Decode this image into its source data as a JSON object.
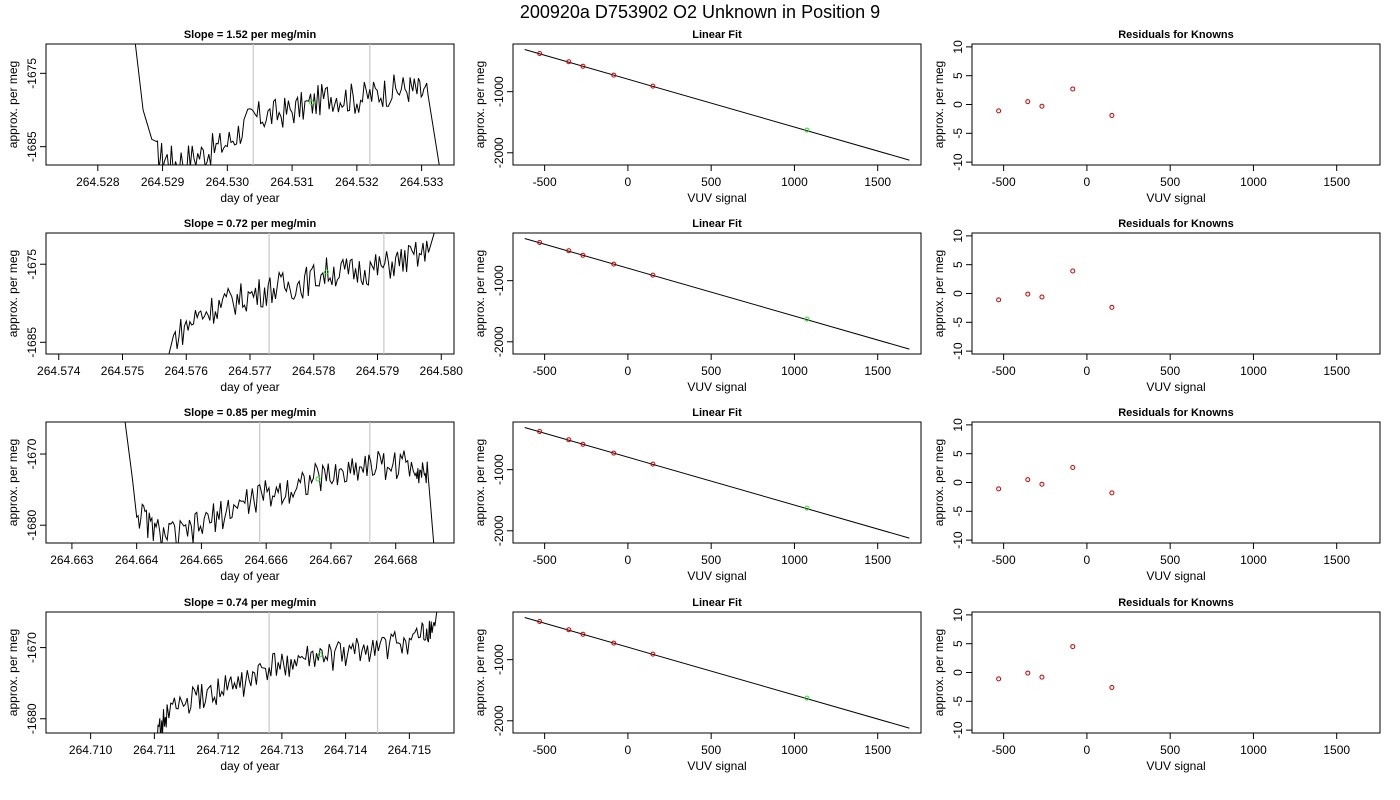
{
  "suptitle": "200920a      D753902   O2 Unknown in Position  9",
  "chart_data": [
    {
      "type": "line",
      "row": 0,
      "panel": "time-series",
      "title": "Slope =  1.52  per meg/min",
      "xlabel": "day of year",
      "ylabel": "approx. per meg",
      "xlim": [
        264.5272,
        264.5335
      ],
      "ylim": [
        -1687.5,
        -1671
      ],
      "xticks": [
        264.528,
        264.529,
        264.53,
        264.531,
        264.532,
        264.533
      ],
      "xtick_labels": [
        "264.528",
        "264.529",
        "264.530",
        "264.531",
        "264.532",
        "264.533"
      ],
      "yticks": [
        -1675,
        -1685
      ],
      "ytick_labels": [
        "-1675",
        "-1685"
      ],
      "vlines": [
        264.5304,
        264.5322
      ],
      "unknown_point": {
        "x": 264.5313,
        "y": -1679
      },
      "series": [
        {
          "x": [
            264.5285,
            264.5287,
            264.5289,
            264.5292,
            264.5296,
            264.53,
            264.5304,
            264.5308,
            264.5312,
            264.5316,
            264.532,
            264.5324,
            264.5328,
            264.5331,
            264.5333
          ],
          "y": [
            -1665,
            -1680,
            -1686,
            -1687,
            -1686,
            -1684.5,
            -1681,
            -1680.5,
            -1679.5,
            -1678,
            -1678.5,
            -1677.5,
            -1677,
            -1678,
            -1689
          ],
          "noise": 2.2
        }
      ]
    },
    {
      "type": "scatter",
      "row": 0,
      "panel": "linear-fit",
      "title": "Linear Fit",
      "xlabel": "VUV signal",
      "ylabel": "approx. per meg",
      "xlim": [
        -690,
        1760
      ],
      "ylim": [
        -2200,
        -220
      ],
      "xticks": [
        -500,
        0,
        500,
        1000,
        1500
      ],
      "xtick_labels": [
        "-500",
        "0",
        "500",
        "1000",
        "1500"
      ],
      "yticks": [
        -1000,
        -2000
      ],
      "ytick_labels": [
        "-1000",
        "-2000"
      ],
      "fit_line": {
        "x": [
          -620,
          1690
        ],
        "y": [
          -310,
          -2120
        ]
      },
      "knowns": {
        "x": [
          -530,
          -355,
          -270,
          -85,
          150
        ],
        "y": [
          -375,
          -510,
          -585,
          -730,
          -910
        ]
      },
      "unknown": {
        "x": 1075,
        "y": -1630
      }
    },
    {
      "type": "scatter",
      "row": 0,
      "panel": "residuals",
      "title": "Residuals for Knowns",
      "xlabel": "VUV signal",
      "ylabel": "approx. per meg",
      "xlim": [
        -690,
        1760
      ],
      "ylim": [
        -10.5,
        10.5
      ],
      "xticks": [
        -500,
        0,
        500,
        1000,
        1500
      ],
      "xtick_labels": [
        "-500",
        "0",
        "500",
        "1000",
        "1500"
      ],
      "yticks": [
        -10,
        -5,
        0,
        5,
        10
      ],
      "ytick_labels": [
        "-10",
        "-5",
        "0",
        "5",
        "10"
      ],
      "points": {
        "x": [
          -530,
          -355,
          -270,
          -85,
          150
        ],
        "y": [
          -1.1,
          0.5,
          -0.3,
          2.7,
          -1.9
        ]
      }
    },
    {
      "type": "line",
      "row": 1,
      "panel": "time-series",
      "title": "Slope =  0.72  per meg/min",
      "xlabel": "day of year",
      "ylabel": "approx. per meg",
      "xlim": [
        264.5738,
        264.5802
      ],
      "ylim": [
        -1686.5,
        -1671
      ],
      "xticks": [
        264.574,
        264.575,
        264.576,
        264.577,
        264.578,
        264.579,
        264.58
      ],
      "xtick_labels": [
        "264.574",
        "264.575",
        "264.576",
        "264.577",
        "264.578",
        "264.579",
        "264.580"
      ],
      "yticks": [
        -1675,
        -1685
      ],
      "ytick_labels": [
        "-1675",
        "-1685"
      ],
      "vlines": [
        264.5773,
        264.5791
      ],
      "unknown_point": {
        "x": 264.5782,
        "y": -1676
      },
      "series": [
        {
          "x": [
            264.5756,
            264.5758,
            264.5762,
            264.5766,
            264.577,
            264.5774,
            264.5778,
            264.5782,
            264.5786,
            264.579,
            264.5794,
            264.5798,
            264.58
          ],
          "y": [
            -1690,
            -1684.5,
            -1681.5,
            -1680,
            -1679,
            -1678,
            -1677.5,
            -1676,
            -1676,
            -1675.5,
            -1674.5,
            -1673.5,
            -1668
          ],
          "noise": 2.0
        }
      ]
    },
    {
      "type": "scatter",
      "row": 1,
      "panel": "linear-fit",
      "title": "Linear Fit",
      "xlabel": "VUV signal",
      "ylabel": "approx. per meg",
      "xlim": [
        -690,
        1760
      ],
      "ylim": [
        -2200,
        -220
      ],
      "xticks": [
        -500,
        0,
        500,
        1000,
        1500
      ],
      "xtick_labels": [
        "-500",
        "0",
        "500",
        "1000",
        "1500"
      ],
      "yticks": [
        -1000,
        -2000
      ],
      "ytick_labels": [
        "-1000",
        "-2000"
      ],
      "fit_line": {
        "x": [
          -620,
          1690
        ],
        "y": [
          -310,
          -2120
        ]
      },
      "knowns": {
        "x": [
          -530,
          -355,
          -270,
          -85,
          150
        ],
        "y": [
          -375,
          -510,
          -585,
          -730,
          -910
        ]
      },
      "unknown": {
        "x": 1075,
        "y": -1630
      }
    },
    {
      "type": "scatter",
      "row": 1,
      "panel": "residuals",
      "title": "Residuals for Knowns",
      "xlabel": "VUV signal",
      "ylabel": "approx. per meg",
      "xlim": [
        -690,
        1760
      ],
      "ylim": [
        -10.5,
        10.5
      ],
      "xticks": [
        -500,
        0,
        500,
        1000,
        1500
      ],
      "xtick_labels": [
        "-500",
        "0",
        "500",
        "1000",
        "1500"
      ],
      "yticks": [
        -10,
        -5,
        0,
        5,
        10
      ],
      "ytick_labels": [
        "-10",
        "-5",
        "0",
        "5",
        "10"
      ],
      "points": {
        "x": [
          -530,
          -355,
          -270,
          -85,
          150
        ],
        "y": [
          -1.1,
          -0.1,
          -0.6,
          3.9,
          -2.4
        ]
      }
    },
    {
      "type": "line",
      "row": 2,
      "panel": "time-series",
      "title": "Slope =  0.85  per meg/min",
      "xlabel": "day of year",
      "ylabel": "approx. per meg",
      "xlim": [
        264.6626,
        264.6689
      ],
      "ylim": [
        -1682.5,
        -1665.5
      ],
      "xticks": [
        264.663,
        264.664,
        264.665,
        264.666,
        264.667,
        264.668
      ],
      "xtick_labels": [
        "264.663",
        "264.664",
        "264.665",
        "264.666",
        "264.667",
        "264.668"
      ],
      "yticks": [
        -1670,
        -1680
      ],
      "ytick_labels": [
        "-1670",
        "-1680"
      ],
      "vlines": [
        264.6659,
        264.6676
      ],
      "unknown_point": {
        "x": 264.6668,
        "y": -1673.5
      },
      "series": [
        {
          "x": [
            264.6638,
            264.664,
            264.6643,
            264.6647,
            264.6651,
            264.6655,
            264.6659,
            264.6663,
            264.6667,
            264.6671,
            264.6675,
            264.6679,
            264.6683,
            264.6685,
            264.6686
          ],
          "y": [
            -1664,
            -1678,
            -1681,
            -1681.5,
            -1679.5,
            -1677.5,
            -1676,
            -1675,
            -1673.5,
            -1673,
            -1671.5,
            -1671.5,
            -1671.5,
            -1673,
            -1684
          ],
          "noise": 2.2
        }
      ]
    },
    {
      "type": "scatter",
      "row": 2,
      "panel": "linear-fit",
      "title": "Linear Fit",
      "xlabel": "VUV signal",
      "ylabel": "approx. per meg",
      "xlim": [
        -690,
        1760
      ],
      "ylim": [
        -2200,
        -220
      ],
      "xticks": [
        -500,
        0,
        500,
        1000,
        1500
      ],
      "xtick_labels": [
        "-500",
        "0",
        "500",
        "1000",
        "1500"
      ],
      "yticks": [
        -1000,
        -2000
      ],
      "ytick_labels": [
        "-1000",
        "-2000"
      ],
      "fit_line": {
        "x": [
          -620,
          1690
        ],
        "y": [
          -310,
          -2120
        ]
      },
      "knowns": {
        "x": [
          -530,
          -355,
          -270,
          -85,
          150
        ],
        "y": [
          -375,
          -510,
          -585,
          -730,
          -910
        ]
      },
      "unknown": {
        "x": 1075,
        "y": -1630
      }
    },
    {
      "type": "scatter",
      "row": 2,
      "panel": "residuals",
      "title": "Residuals for Knowns",
      "xlabel": "VUV signal",
      "ylabel": "approx. per meg",
      "xlim": [
        -690,
        1760
      ],
      "ylim": [
        -10.5,
        10.5
      ],
      "xticks": [
        -500,
        0,
        500,
        1000,
        1500
      ],
      "xtick_labels": [
        "-500",
        "0",
        "500",
        "1000",
        "1500"
      ],
      "yticks": [
        -10,
        -5,
        0,
        5,
        10
      ],
      "ytick_labels": [
        "-10",
        "-5",
        "0",
        "5",
        "10"
      ],
      "points": {
        "x": [
          -530,
          -355,
          -270,
          -85,
          150
        ],
        "y": [
          -1.1,
          0.5,
          -0.3,
          2.6,
          -1.8
        ]
      }
    },
    {
      "type": "line",
      "row": 3,
      "panel": "time-series",
      "title": "Slope =  0.74  per meg/min",
      "xlabel": "day of year",
      "ylabel": "approx. per meg",
      "xlim": [
        264.7093,
        264.7157
      ],
      "ylim": [
        -1682,
        -1665
      ],
      "xticks": [
        264.71,
        264.711,
        264.712,
        264.713,
        264.714,
        264.715
      ],
      "xtick_labels": [
        "264.710",
        "264.711",
        "264.712",
        "264.713",
        "264.714",
        "264.715"
      ],
      "yticks": [
        -1670,
        -1680
      ],
      "ytick_labels": [
        "-1670",
        "-1680"
      ],
      "vlines": [
        264.7128,
        264.7145
      ],
      "unknown_point": {
        "x": 264.7136,
        "y": -1671
      },
      "series": [
        {
          "x": [
            264.711,
            264.7112,
            264.7116,
            264.712,
            264.7124,
            264.7128,
            264.7132,
            264.7136,
            264.714,
            264.7144,
            264.7148,
            264.7152,
            264.7154,
            264.7155
          ],
          "y": [
            -1684,
            -1679,
            -1677.5,
            -1676,
            -1675,
            -1673,
            -1672,
            -1671.5,
            -1671,
            -1670,
            -1669.5,
            -1668.5,
            -1667,
            -1660
          ],
          "noise": 2.0
        }
      ]
    },
    {
      "type": "scatter",
      "row": 3,
      "panel": "linear-fit",
      "title": "Linear Fit",
      "xlabel": "VUV signal",
      "ylabel": "approx. per meg",
      "xlim": [
        -690,
        1760
      ],
      "ylim": [
        -2200,
        -220
      ],
      "xticks": [
        -500,
        0,
        500,
        1000,
        1500
      ],
      "xtick_labels": [
        "-500",
        "0",
        "500",
        "1000",
        "1500"
      ],
      "yticks": [
        -1000,
        -2000
      ],
      "ytick_labels": [
        "-1000",
        "-2000"
      ],
      "fit_line": {
        "x": [
          -620,
          1690
        ],
        "y": [
          -310,
          -2120
        ]
      },
      "knowns": {
        "x": [
          -530,
          -355,
          -270,
          -85,
          150
        ],
        "y": [
          -375,
          -510,
          -585,
          -730,
          -910
        ]
      },
      "unknown": {
        "x": 1075,
        "y": -1630
      }
    },
    {
      "type": "scatter",
      "row": 3,
      "panel": "residuals",
      "title": "Residuals for Knowns",
      "xlabel": "VUV signal",
      "ylabel": "approx. per meg",
      "xlim": [
        -690,
        1760
      ],
      "ylim": [
        -10.5,
        10.5
      ],
      "xticks": [
        -500,
        0,
        500,
        1000,
        1500
      ],
      "xtick_labels": [
        "-500",
        "0",
        "500",
        "1000",
        "1500"
      ],
      "yticks": [
        -10,
        -5,
        0,
        5,
        10
      ],
      "ytick_labels": [
        "-10",
        "-5",
        "0",
        "5",
        "10"
      ],
      "points": {
        "x": [
          -530,
          -355,
          -270,
          -85,
          150
        ],
        "y": [
          -1.1,
          -0.1,
          -0.8,
          4.5,
          -2.6
        ]
      }
    }
  ],
  "colors": {
    "line": "#000000",
    "known": "#cc0000",
    "unknown": "#33dd33",
    "vline": "#c8c8c8"
  }
}
